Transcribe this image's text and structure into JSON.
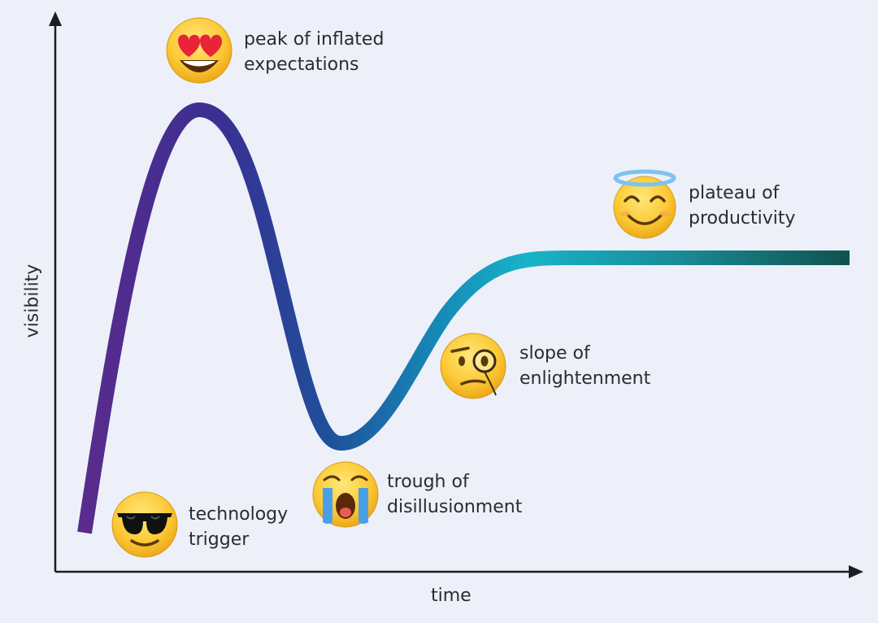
{
  "axes": {
    "x_label": "time",
    "y_label": "visibility"
  },
  "colors": {
    "background": "#edf0f9",
    "axis": "#1c1c22",
    "text": "#2b2b33",
    "curve_gradient": [
      "#5a2b8c",
      "#3a2f93",
      "#1f4f9a",
      "#1688b6",
      "#17b4c8",
      "#1a8a96",
      "#10524e"
    ]
  },
  "phases": [
    {
      "id": "technology-trigger",
      "line1": "technology",
      "line2": "trigger",
      "icon": "sunglasses-face-icon"
    },
    {
      "id": "peak",
      "line1": "peak of inflated",
      "line2": "expectations",
      "icon": "heart-eyes-face-icon"
    },
    {
      "id": "trough",
      "line1": "trough of",
      "line2": "disillusionment",
      "icon": "crying-face-icon"
    },
    {
      "id": "slope",
      "line1": "slope of",
      "line2": "enlightenment",
      "icon": "monocle-face-icon"
    },
    {
      "id": "plateau",
      "line1": "plateau of",
      "line2": "productivity",
      "icon": "halo-face-icon"
    }
  ]
}
